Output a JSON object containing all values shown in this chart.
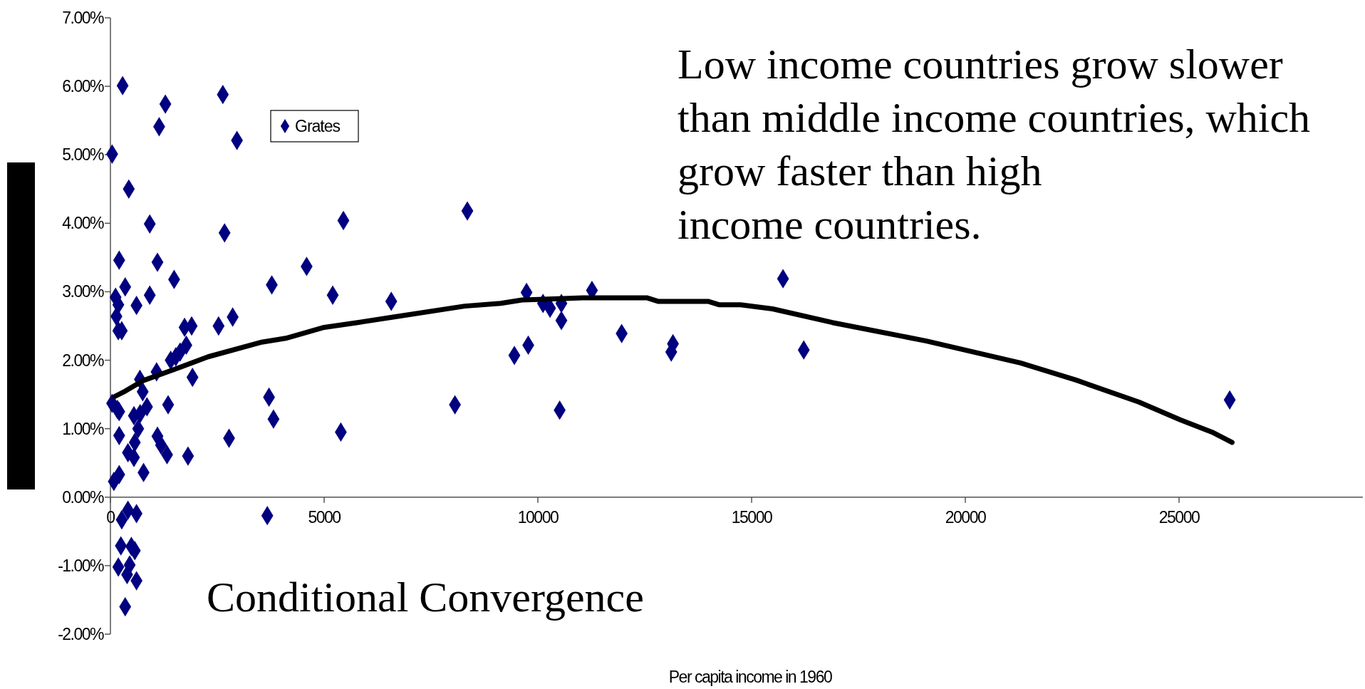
{
  "chart_data": {
    "type": "scatter",
    "title": "Conditional Convergence",
    "xlabel": "Per capita income in 1960",
    "annotations": [
      "Low income countries grow slower\nthan middle income countries, which\ngrow faster than high\nincome countries."
    ],
    "xlim": [
      0,
      29300
    ],
    "xticks": [
      0,
      5000,
      10000,
      15000,
      20000,
      25000
    ],
    "ylim": [
      -2,
      7
    ],
    "yticks": [
      {
        "value": -2,
        "label": "-2.00%"
      },
      {
        "value": -1,
        "label": "-1.00%"
      },
      {
        "value": 0,
        "label": "0.00%"
      },
      {
        "value": 1,
        "label": "1.00%"
      },
      {
        "value": 2,
        "label": "2.00%"
      },
      {
        "value": 3,
        "label": "3.00%"
      },
      {
        "value": 4,
        "label": "4.00%"
      },
      {
        "value": 5,
        "label": "5.00%"
      },
      {
        "value": 6,
        "label": "6.00%"
      },
      {
        "value": 7,
        "label": "7.00%"
      }
    ],
    "grid": false,
    "legend": "top left",
    "marker": "diamond",
    "series": [
      {
        "name": "Grates",
        "color": "#000080",
        "x": [
          285,
          40,
          430,
          920,
          205,
          1100,
          1490,
          345,
          120,
          185,
          610,
          920,
          140,
          185,
          265,
          1285,
          1140,
          2630,
          2960,
          2670,
          2860,
          2530,
          1900,
          1735,
          1775,
          1630,
          1530,
          1410,
          1920,
          1080,
          690,
          755,
          1350,
          855,
          695,
          550,
          40,
          165,
          205,
          205,
          1100,
          410,
          550,
          570,
          650,
          1185,
          1325,
          1815,
          2775,
          775,
          205,
          80,
          265,
          410,
          610,
          245,
          490,
          570,
          185,
          450,
          390,
          610,
          345,
          3670,
          3710,
          3815,
          3775,
          4590,
          5200,
          5450,
          5390,
          6570,
          8350,
          8060,
          9450,
          9735,
          9775,
          10120,
          10285,
          10550,
          10550,
          10510,
          11265,
          11960,
          13120,
          13160,
          15735,
          16220,
          26185
        ],
        "values": [
          6.01,
          5.01,
          4.5,
          3.99,
          3.46,
          3.43,
          3.18,
          3.07,
          2.92,
          2.81,
          2.8,
          2.95,
          2.64,
          2.43,
          2.43,
          5.74,
          5.41,
          5.88,
          5.21,
          3.86,
          2.63,
          2.5,
          2.5,
          2.48,
          2.22,
          2.12,
          2.05,
          2,
          1.75,
          1.83,
          1.72,
          1.54,
          1.35,
          1.32,
          1.22,
          1.19,
          1.37,
          1.28,
          1.25,
          0.9,
          0.89,
          0.65,
          0.58,
          0.8,
          1,
          0.76,
          0.62,
          0.6,
          0.86,
          0.36,
          0.33,
          0.23,
          -0.33,
          -0.19,
          -0.24,
          -0.71,
          -0.72,
          -0.78,
          -1.02,
          -0.99,
          -1.13,
          -1.22,
          -1.6,
          -0.27,
          1.46,
          1.14,
          3.1,
          3.37,
          2.95,
          4.04,
          0.95,
          2.86,
          4.18,
          1.35,
          2.07,
          2.99,
          2.22,
          2.83,
          2.76,
          2.83,
          2.58,
          1.27,
          3.02,
          2.39,
          2.12,
          2.24,
          3.19,
          2.15,
          1.42
        ]
      },
      {
        "type": "line",
        "color": "#000000",
        "marker": "none",
        "line_style": "solid",
        "x": [
          100,
          350,
          755,
          1470,
          2285,
          3510,
          4100,
          5000,
          5780,
          6615,
          8290,
          9130,
          9630,
          11055,
          12560,
          12810,
          13980,
          14235,
          14740,
          15490,
          16890,
          17870,
          19090,
          21290,
          22590,
          24060,
          25030,
          25770,
          26240
        ],
        "values": [
          1.47,
          1.55,
          1.7,
          1.86,
          2.05,
          2.26,
          2.32,
          2.48,
          2.55,
          2.63,
          2.79,
          2.83,
          2.88,
          2.91,
          2.91,
          2.86,
          2.86,
          2.81,
          2.81,
          2.75,
          2.55,
          2.43,
          2.28,
          1.96,
          1.71,
          1.39,
          1.13,
          0.95,
          0.8
        ]
      }
    ]
  }
}
